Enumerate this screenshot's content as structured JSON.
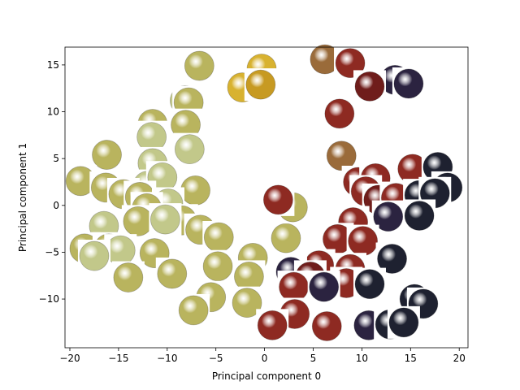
{
  "colors": {
    "yellow_green": "#b9b45e",
    "light_green": "#c2c88a",
    "golden": "#d8b230",
    "amber": "#c79a22",
    "red": "#8e2a22",
    "dark_red": "#6f1d1b",
    "purple": "#2b2340",
    "dark": "#1e2130",
    "brown": "#9a6b3a"
  },
  "chart_data": {
    "type": "scatter",
    "title": "",
    "xlabel": "Principal component 0",
    "ylabel": "Principal component 1",
    "xlim": [
      -20.5,
      20.9
    ],
    "ylim": [
      -15.2,
      16.9
    ],
    "xticks": [
      -20,
      -15,
      -10,
      -5,
      0,
      5,
      10,
      15,
      20
    ],
    "yticks": [
      -10,
      -5,
      0,
      5,
      10,
      15
    ],
    "xtick_labels": [
      "−20",
      "−15",
      "−10",
      "−5",
      "0",
      "5",
      "10",
      "15",
      "20"
    ],
    "ytick_labels": [
      "−10",
      "−5",
      "0",
      "5",
      "10",
      "15"
    ],
    "grid": false,
    "marker": "fruit-image",
    "points": [
      {
        "x": -6.7,
        "y": 14.9,
        "color": "yellow_green"
      },
      {
        "x": -2.3,
        "y": 12.6,
        "color": "golden"
      },
      {
        "x": -0.3,
        "y": 14.6,
        "color": "golden"
      },
      {
        "x": -0.4,
        "y": 12.9,
        "color": "amber"
      },
      {
        "x": -8.2,
        "y": 11.2,
        "color": "light_green"
      },
      {
        "x": -7.8,
        "y": 11.0,
        "color": "yellow_green"
      },
      {
        "x": -11.5,
        "y": 8.7,
        "color": "yellow_green"
      },
      {
        "x": -11.6,
        "y": 7.3,
        "color": "light_green"
      },
      {
        "x": -8.1,
        "y": 8.6,
        "color": "yellow_green"
      },
      {
        "x": -7.7,
        "y": 6.0,
        "color": "light_green"
      },
      {
        "x": -16.2,
        "y": 5.4,
        "color": "yellow_green"
      },
      {
        "x": -11.5,
        "y": 4.5,
        "color": "light_green"
      },
      {
        "x": -12.0,
        "y": 2.1,
        "color": "light_green"
      },
      {
        "x": -10.5,
        "y": 3.0,
        "color": "light_green"
      },
      {
        "x": -18.9,
        "y": 2.6,
        "color": "yellow_green"
      },
      {
        "x": -16.3,
        "y": 1.9,
        "color": "yellow_green"
      },
      {
        "x": -14.5,
        "y": 1.2,
        "color": "yellow_green"
      },
      {
        "x": -12.8,
        "y": 0.9,
        "color": "yellow_green"
      },
      {
        "x": -7.1,
        "y": 1.6,
        "color": "yellow_green"
      },
      {
        "x": -9.9,
        "y": 0.2,
        "color": "light_green"
      },
      {
        "x": -12.1,
        "y": -0.3,
        "color": "yellow_green"
      },
      {
        "x": -8.5,
        "y": -1.6,
        "color": "yellow_green"
      },
      {
        "x": -13.0,
        "y": -1.7,
        "color": "yellow_green"
      },
      {
        "x": -10.2,
        "y": -1.5,
        "color": "light_green"
      },
      {
        "x": -16.5,
        "y": -2.2,
        "color": "light_green"
      },
      {
        "x": -6.6,
        "y": -2.6,
        "color": "yellow_green"
      },
      {
        "x": -4.7,
        "y": -3.4,
        "color": "yellow_green"
      },
      {
        "x": -18.5,
        "y": -4.6,
        "color": "yellow_green"
      },
      {
        "x": -16.0,
        "y": -4.6,
        "color": "yellow_green"
      },
      {
        "x": -14.8,
        "y": -4.8,
        "color": "light_green"
      },
      {
        "x": -11.3,
        "y": -5.1,
        "color": "yellow_green"
      },
      {
        "x": -17.5,
        "y": -5.4,
        "color": "light_green"
      },
      {
        "x": -1.2,
        "y": -5.6,
        "color": "yellow_green"
      },
      {
        "x": -4.8,
        "y": -6.5,
        "color": "yellow_green"
      },
      {
        "x": -9.5,
        "y": -7.3,
        "color": "yellow_green"
      },
      {
        "x": -14.0,
        "y": -7.7,
        "color": "yellow_green"
      },
      {
        "x": -1.6,
        "y": -7.6,
        "color": "yellow_green"
      },
      {
        "x": -5.5,
        "y": -9.8,
        "color": "yellow_green"
      },
      {
        "x": -1.8,
        "y": -10.4,
        "color": "yellow_green"
      },
      {
        "x": -7.3,
        "y": -11.2,
        "color": "yellow_green"
      },
      {
        "x": 2.2,
        "y": -3.5,
        "color": "yellow_green"
      },
      {
        "x": 2.9,
        "y": -0.2,
        "color": "yellow_green"
      },
      {
        "x": 1.4,
        "y": 0.6,
        "color": "red"
      },
      {
        "x": 6.2,
        "y": 15.6,
        "color": "brown"
      },
      {
        "x": 8.8,
        "y": 15.2,
        "color": "red"
      },
      {
        "x": 13.4,
        "y": 13.4,
        "color": "purple"
      },
      {
        "x": 14.8,
        "y": 13.0,
        "color": "purple"
      },
      {
        "x": 10.8,
        "y": 12.7,
        "color": "dark_red"
      },
      {
        "x": 7.7,
        "y": 9.8,
        "color": "red"
      },
      {
        "x": 7.9,
        "y": 5.3,
        "color": "brown"
      },
      {
        "x": 9.6,
        "y": 2.5,
        "color": "red"
      },
      {
        "x": 11.4,
        "y": 2.9,
        "color": "red"
      },
      {
        "x": 15.2,
        "y": 3.9,
        "color": "red"
      },
      {
        "x": 17.8,
        "y": 4.1,
        "color": "dark"
      },
      {
        "x": 10.4,
        "y": 1.5,
        "color": "red"
      },
      {
        "x": 11.7,
        "y": 0.6,
        "color": "dark_red"
      },
      {
        "x": 13.5,
        "y": 0.8,
        "color": "red"
      },
      {
        "x": 15.9,
        "y": 1.1,
        "color": "dark"
      },
      {
        "x": 18.8,
        "y": 1.9,
        "color": "dark"
      },
      {
        "x": 17.5,
        "y": 1.3,
        "color": "dark"
      },
      {
        "x": 12.7,
        "y": -1.2,
        "color": "purple"
      },
      {
        "x": 15.9,
        "y": -1.1,
        "color": "dark"
      },
      {
        "x": 9.1,
        "y": -1.8,
        "color": "red"
      },
      {
        "x": 7.5,
        "y": -3.6,
        "color": "red"
      },
      {
        "x": 10.1,
        "y": -3.8,
        "color": "red"
      },
      {
        "x": 13.1,
        "y": -5.7,
        "color": "dark"
      },
      {
        "x": 5.6,
        "y": -6.4,
        "color": "red"
      },
      {
        "x": 8.8,
        "y": -6.8,
        "color": "red"
      },
      {
        "x": 2.7,
        "y": -7.1,
        "color": "purple"
      },
      {
        "x": 4.7,
        "y": -7.6,
        "color": "dark_red"
      },
      {
        "x": 8.4,
        "y": -8.3,
        "color": "red"
      },
      {
        "x": 3.0,
        "y": -8.7,
        "color": "red"
      },
      {
        "x": 6.1,
        "y": -8.7,
        "color": "purple"
      },
      {
        "x": 10.8,
        "y": -8.4,
        "color": "dark"
      },
      {
        "x": 15.4,
        "y": -10.0,
        "color": "dark"
      },
      {
        "x": 16.3,
        "y": -10.5,
        "color": "dark"
      },
      {
        "x": 3.1,
        "y": -11.6,
        "color": "red"
      },
      {
        "x": 0.8,
        "y": -12.8,
        "color": "red"
      },
      {
        "x": 6.4,
        "y": -12.9,
        "color": "red"
      },
      {
        "x": 10.7,
        "y": -12.8,
        "color": "purple"
      },
      {
        "x": 12.9,
        "y": -12.7,
        "color": "dark"
      },
      {
        "x": 14.3,
        "y": -12.5,
        "color": "dark"
      }
    ]
  }
}
